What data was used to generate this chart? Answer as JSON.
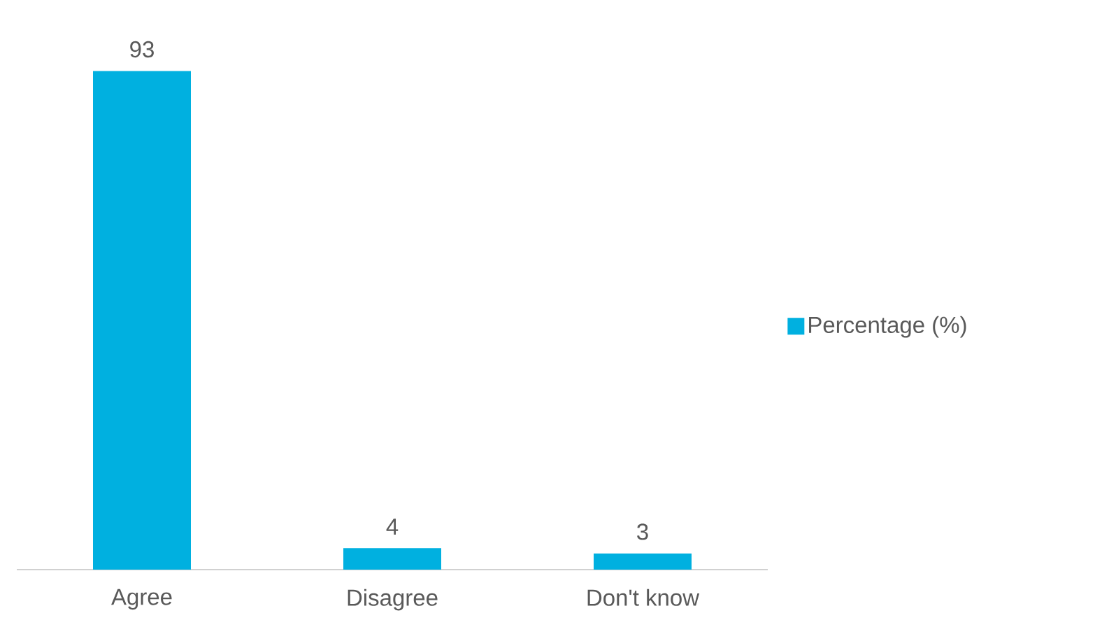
{
  "chart_data": {
    "type": "bar",
    "categories": [
      "Agree",
      "Disagree",
      "Don't know"
    ],
    "series": [
      {
        "name": "Percentage (%)",
        "color": "#00b0e0",
        "values": [
          93,
          4,
          3
        ]
      }
    ],
    "data_labels": true,
    "legend": "right"
  }
}
